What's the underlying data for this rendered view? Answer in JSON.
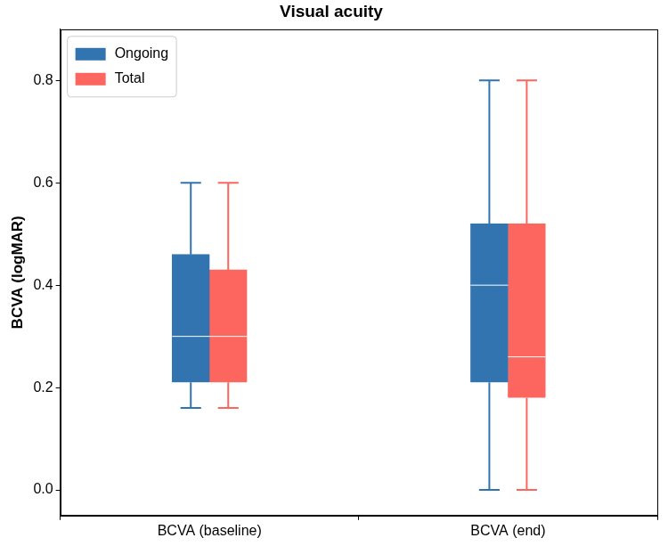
{
  "chart_data": {
    "type": "box",
    "title": "Visual acuity",
    "y_label": "BCVA (logMAR)",
    "categories": [
      "BCVA (baseline)",
      "BCVA (end)"
    ],
    "series": [
      {
        "name": "Ongoing",
        "color": "#3274b0",
        "values": [
          {
            "min": 0.16,
            "q1": 0.21,
            "median": 0.3,
            "q3": 0.46,
            "max": 0.6
          },
          {
            "min": 0.0,
            "q1": 0.21,
            "median": 0.4,
            "q3": 0.52,
            "max": 0.8
          }
        ]
      },
      {
        "name": "Total",
        "color": "#fc665e",
        "values": [
          {
            "min": 0.16,
            "q1": 0.21,
            "median": 0.3,
            "q3": 0.43,
            "max": 0.6
          },
          {
            "min": 0.0,
            "q1": 0.18,
            "median": 0.26,
            "q3": 0.52,
            "max": 0.8
          }
        ]
      }
    ],
    "ylim": [
      -0.05,
      0.9
    ],
    "yticks": [
      {
        "value": 0,
        "label": "0.0"
      },
      0.2,
      0.4,
      0.6,
      0.8
    ],
    "grid": false,
    "legend": "upper left"
  }
}
